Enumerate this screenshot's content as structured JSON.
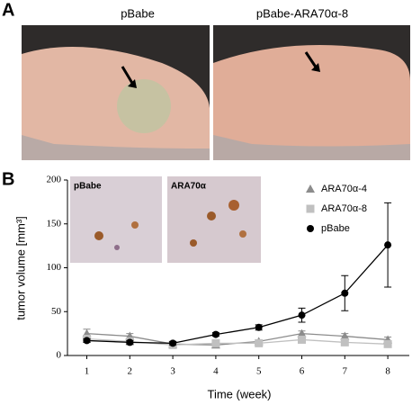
{
  "panels": {
    "a": {
      "letter": "A",
      "left_label": "pBabe",
      "right_label": "pBabe-ARA70α-8"
    },
    "b": {
      "letter": "B",
      "inset_left_label": "pBabe",
      "inset_right_label": "ARA70α"
    }
  },
  "chart_data": {
    "type": "line",
    "x_label": "Time (week)",
    "y_label": "tumor volume [mm³]",
    "x": [
      1,
      2,
      3,
      4,
      5,
      6,
      7,
      8
    ],
    "series": [
      {
        "name": "ARA70α-4",
        "color": "#8c8c8c",
        "marker": "triangle",
        "values": [
          25,
          22,
          13,
          12,
          16,
          25,
          22,
          18
        ],
        "errors": [
          5,
          3,
          2,
          2,
          2,
          3,
          3,
          3
        ]
      },
      {
        "name": "ARA70α-8",
        "color": "#c0c0c0",
        "marker": "square",
        "values": [
          19,
          16,
          12,
          14,
          14,
          18,
          15,
          13
        ],
        "errors": [
          2,
          2,
          2,
          2,
          2,
          2,
          3,
          2
        ]
      },
      {
        "name": "pBabe",
        "color": "#000000",
        "marker": "circle",
        "values": [
          17,
          15,
          14,
          24,
          32,
          46,
          71,
          126
        ],
        "errors": [
          2,
          2,
          2,
          2,
          3,
          8,
          20,
          48
        ]
      }
    ],
    "xlim": [
      0.55,
      8.5
    ],
    "ylim": [
      0,
      200
    ],
    "xticks": [
      1,
      2,
      3,
      4,
      5,
      6,
      7,
      8
    ],
    "yticks": [
      0,
      50,
      100,
      150,
      200
    ]
  }
}
